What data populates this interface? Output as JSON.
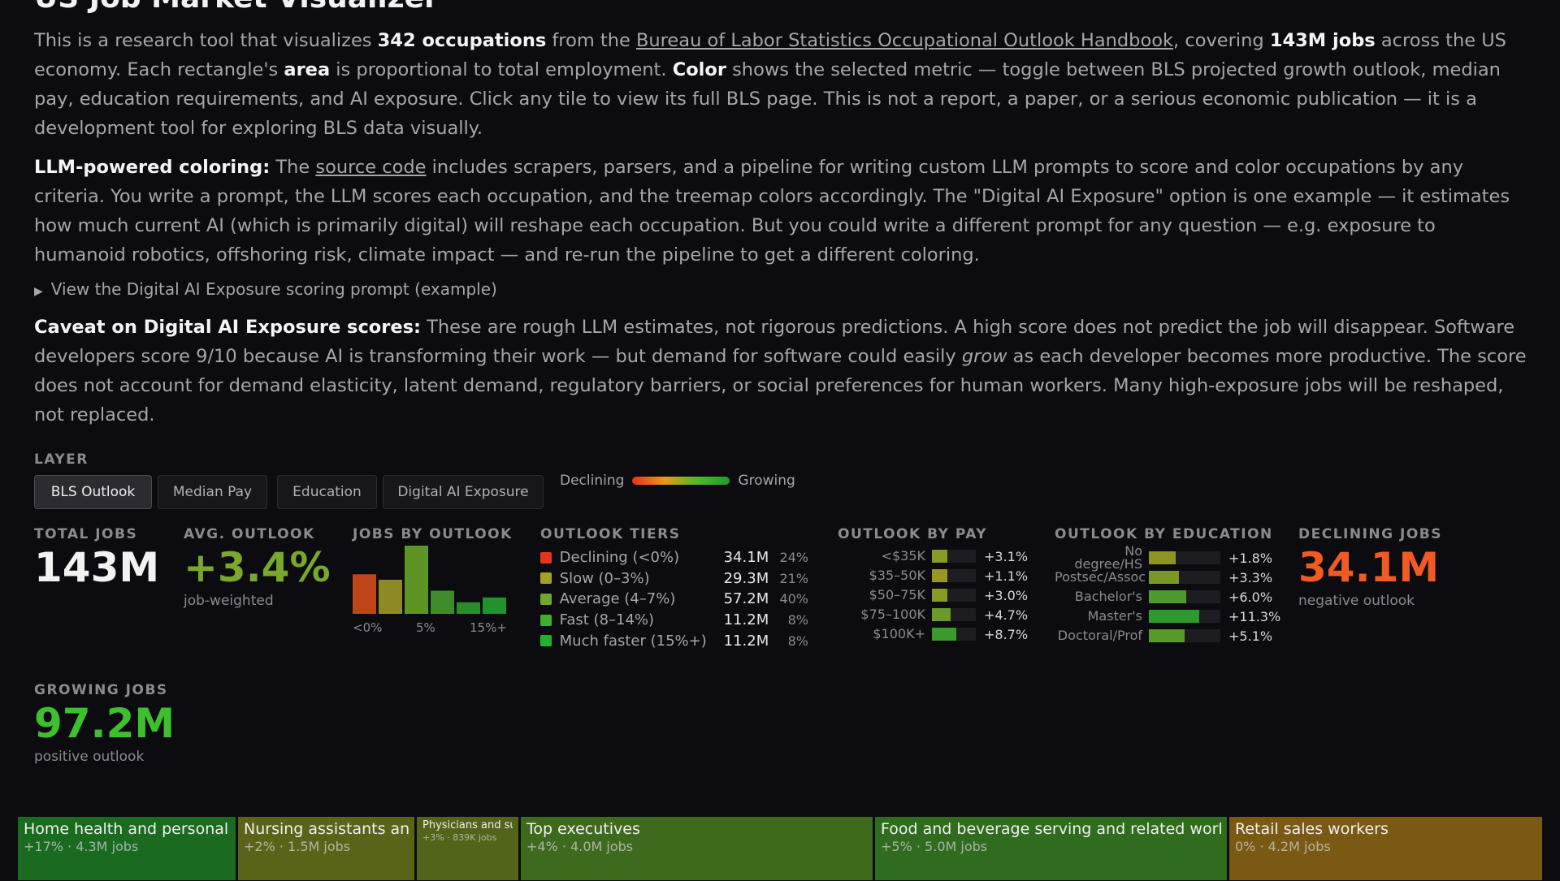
{
  "page": {
    "title": "US Job Market Visualizer",
    "intro": {
      "t1": "This is a research tool that visualizes ",
      "b1": "342 occupations",
      "t2": " from the ",
      "link": "Bureau of Labor Statistics Occupational Outlook Handbook",
      "t3": ", covering ",
      "b2": "143M jobs",
      "t4": " across the US economy. Each rectangle's ",
      "b3": "area",
      "t5": " is proportional to total employment. ",
      "b4": "Color",
      "t6": " shows the selected metric — toggle between BLS projected growth outlook, median pay, education requirements, and AI exposure. Click any tile to view its full BLS page. This is not a report, a paper, or a serious economic publication — it is a development tool for exploring BLS data visually."
    },
    "llm": {
      "bold": "LLM-powered coloring:",
      "t1": " The ",
      "link": "source code",
      "t2": " includes scrapers, parsers, and a pipeline for writing custom LLM prompts to score and color occupations by any criteria. You write a prompt, the LLM scores each occupation, and the treemap colors accordingly. The \"Digital AI Exposure\" option is one example — it estimates how much current AI (which is primarily digital) will reshape each occupation. But you could write a different prompt for any question — e.g. exposure to humanoid robotics, offshoring risk, climate impact — and re-run the pipeline to get a different coloring."
    },
    "details_summary": "View the Digital AI Exposure scoring prompt (example)",
    "caveat": {
      "bold": "Caveat on Digital AI Exposure scores:",
      "t1": " These are rough LLM estimates, not rigorous predictions. A high score does not predict the job will disappear. Software developers score 9/10 because AI is transforming their work — but demand for software could easily ",
      "em": "grow",
      "t2": " as each developer becomes more productive. The score does not account for demand elasticity, latent demand, regulatory barriers, or social preferences for human workers. Many high-exposure jobs will be reshaped, not replaced."
    }
  },
  "layer": {
    "label": "LAYER",
    "buttons": [
      "BLS Outlook",
      "Median Pay",
      "Education",
      "Digital AI Exposure"
    ],
    "active": "BLS Outlook",
    "legend_low": "Declining",
    "legend_high": "Growing"
  },
  "stats": {
    "total_jobs": {
      "label": "TOTAL JOBS",
      "value": "143M"
    },
    "avg_outlook": {
      "label": "AVG. OUTLOOK",
      "value": "+3.4%",
      "sub": "job-weighted"
    },
    "declining": {
      "label": "DECLINING JOBS",
      "value": "34.1M",
      "sub": "negative outlook"
    },
    "growing": {
      "label": "GROWING JOBS",
      "value": "97.2M",
      "sub": "positive outlook"
    }
  },
  "histogram": {
    "label": "JOBS BY OUTLOOK",
    "axis": [
      "<0%",
      "5%",
      "15%+"
    ],
    "bars": [
      {
        "value": 0.58,
        "color": "#c0441a"
      },
      {
        "value": 0.5,
        "color": "#8d8a26"
      },
      {
        "value": 1.0,
        "color": "#5e9424"
      },
      {
        "value": 0.34,
        "color": "#3f8a2a"
      },
      {
        "value": 0.17,
        "color": "#2b8a2a"
      },
      {
        "value": 0.24,
        "color": "#22922f"
      }
    ]
  },
  "tiers": {
    "label": "OUTLOOK TIERS",
    "rows": [
      {
        "name": "Declining (<0%)",
        "jobs": "34.1M",
        "pct": "24%",
        "color": "#e4361e"
      },
      {
        "name": "Slow (0–3%)",
        "jobs": "29.3M",
        "pct": "21%",
        "color": "#a4a226"
      },
      {
        "name": "Average (4–7%)",
        "jobs": "57.2M",
        "pct": "40%",
        "color": "#6fa82c"
      },
      {
        "name": "Fast (8–14%)",
        "jobs": "11.2M",
        "pct": "8%",
        "color": "#3fae2c"
      },
      {
        "name": "Much faster (15%+)",
        "jobs": "11.2M",
        "pct": "8%",
        "color": "#22b02e"
      }
    ]
  },
  "by_pay": {
    "label": "OUTLOOK BY PAY",
    "rows": [
      {
        "name": "<$35K",
        "value": "+3.1%",
        "frac": 0.36,
        "color": "#8a9a24"
      },
      {
        "name": "$35–50K",
        "value": "+1.1%",
        "frac": 0.36,
        "color": "#9a9624"
      },
      {
        "name": "$50–75K",
        "value": "+3.0%",
        "frac": 0.36,
        "color": "#8a9a24"
      },
      {
        "name": "$75–100K",
        "value": "+4.7%",
        "frac": 0.42,
        "color": "#6a9a28"
      },
      {
        "name": "$100K+",
        "value": "+8.7%",
        "frac": 0.56,
        "color": "#3a9a2c"
      }
    ]
  },
  "by_education": {
    "label": "OUTLOOK BY EDUCATION",
    "rows": [
      {
        "name": "No degree/HS",
        "value": "+1.8%",
        "frac": 0.38,
        "color": "#8e9424"
      },
      {
        "name": "Postsec/Assoc",
        "value": "+3.3%",
        "frac": 0.42,
        "color": "#7a9826"
      },
      {
        "name": "Bachelor's",
        "value": "+6.0%",
        "frac": 0.52,
        "color": "#4e9a2a"
      },
      {
        "name": "Master's",
        "value": "+11.3%",
        "frac": 0.7,
        "color": "#2c9a2c"
      },
      {
        "name": "Doctoral/Prof",
        "value": "+5.1%",
        "frac": 0.5,
        "color": "#579a2a"
      }
    ]
  },
  "treemap": [
    {
      "name": "Home health and personal care aides",
      "sub": "+17% · 4.3M jobs",
      "color": "#1a6a20"
    },
    {
      "name": "Nursing assistants and orderlies",
      "sub": "+2% · 1.5M jobs",
      "color": "#5a6418"
    },
    {
      "name": "Physicians and surgeons",
      "sub": "+3% · 839K jobs",
      "color": "#52641a"
    },
    {
      "name": "Top executives",
      "sub": "+4% · 4.0M jobs",
      "color": "#3e6a1e"
    },
    {
      "name": "Food and beverage serving and related workers",
      "sub": "+5% · 5.0M jobs",
      "color": "#2f6c1e"
    },
    {
      "name": "Retail sales workers",
      "sub": "0% · 4.2M jobs",
      "color": "#7a5a12"
    }
  ]
}
